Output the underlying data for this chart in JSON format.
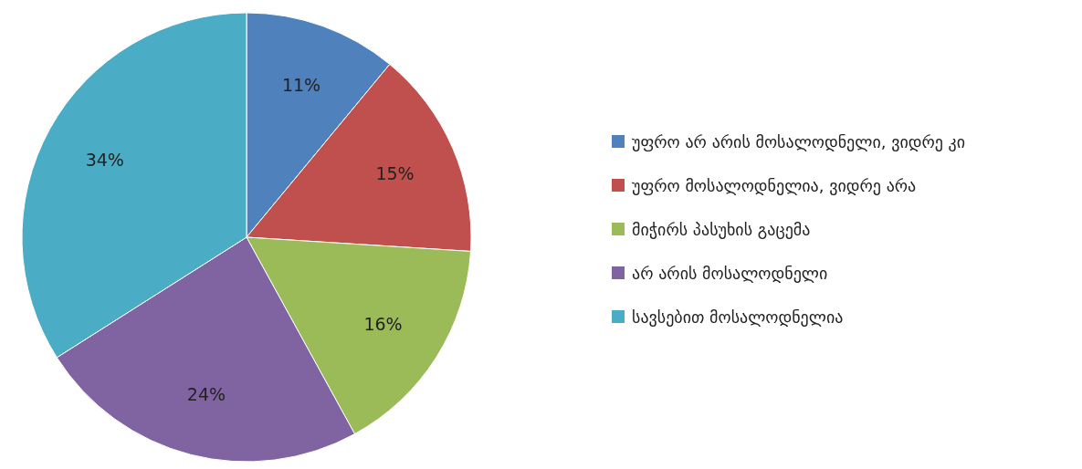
{
  "chart_data": {
    "type": "pie",
    "categories": [
      "უფრო არ არის მოსალოდნელი, ვიდრე კი",
      "უფრო მოსალოდნელია, ვიდრე არა",
      "მიჭირს პასუხის გაცემა",
      "არ არის მოსალოდნელი",
      "სავსებით მოსალოდნელია"
    ],
    "values": [
      11,
      15,
      16,
      24,
      34
    ],
    "colors": [
      "#4f81bd",
      "#c0504d",
      "#9bbb59",
      "#8064a2",
      "#4bacc6"
    ],
    "value_labels": [
      "11%",
      "15%",
      "16%",
      "24%",
      "34%"
    ],
    "legend": "right"
  }
}
